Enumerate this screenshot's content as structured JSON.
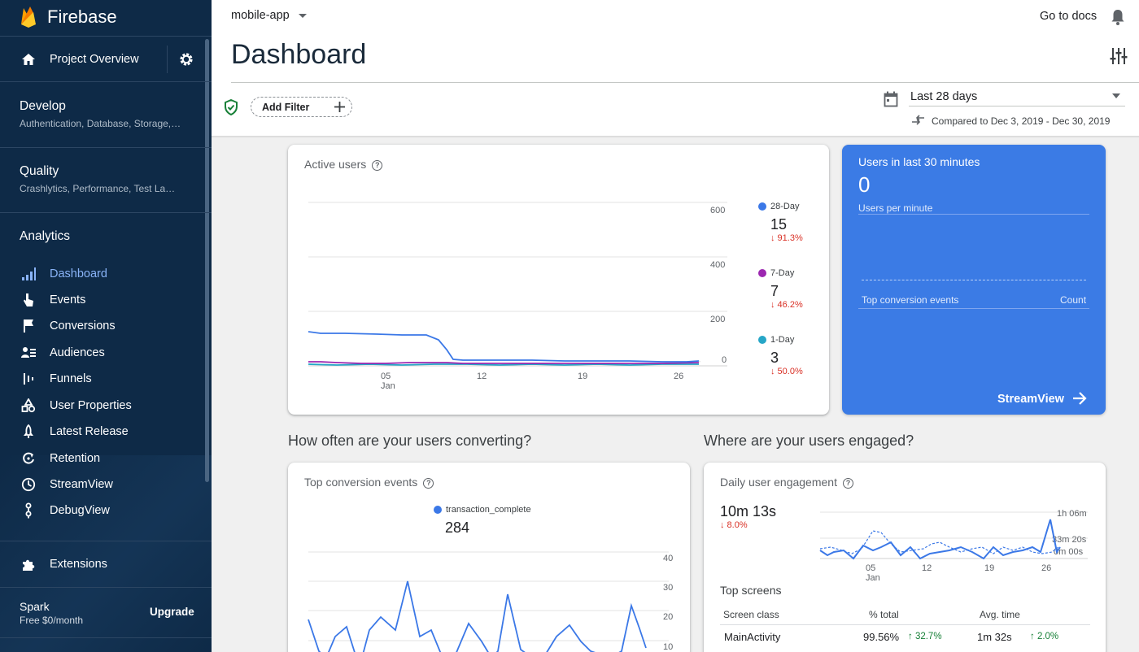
{
  "app": {
    "name": "Firebase"
  },
  "sidebar": {
    "project_overview": "Project Overview",
    "sections": [
      {
        "title": "Develop",
        "subtitle": "Authentication, Database, Storage,…"
      },
      {
        "title": "Quality",
        "subtitle": "Crashlytics, Performance, Test La…"
      }
    ],
    "analytics_title": "Analytics",
    "analytics_items": [
      {
        "label": "Dashboard",
        "icon": "dashboard-icon",
        "active": true
      },
      {
        "label": "Events",
        "icon": "events-icon"
      },
      {
        "label": "Conversions",
        "icon": "flag-icon"
      },
      {
        "label": "Audiences",
        "icon": "audiences-icon"
      },
      {
        "label": "Funnels",
        "icon": "funnels-icon"
      },
      {
        "label": "User Properties",
        "icon": "user-properties-icon"
      },
      {
        "label": "Latest Release",
        "icon": "rocket-icon"
      },
      {
        "label": "Retention",
        "icon": "retention-icon"
      },
      {
        "label": "StreamView",
        "icon": "clock-icon"
      },
      {
        "label": "DebugView",
        "icon": "debug-icon"
      }
    ],
    "extensions": "Extensions",
    "plan": {
      "name": "Spark",
      "price": "Free $0/month",
      "upgrade": "Upgrade"
    }
  },
  "header": {
    "project": "mobile-app",
    "docs_link": "Go to docs",
    "page_title": "Dashboard",
    "add_filter": "Add Filter",
    "date_range": "Last 28 days",
    "compared": "Compared to Dec 3, 2019 - Dec 30, 2019"
  },
  "colors": {
    "accent": "#3b7be5",
    "sidebar_bg": "#0e2a47",
    "series_28day": "#3b78e7",
    "series_7day": "#9c27b0",
    "series_1day": "#26a6c7",
    "down": "#d93025",
    "up": "#188038"
  },
  "active_users": {
    "title": "Active users",
    "legend": [
      {
        "name": "28-Day",
        "value": "15",
        "delta": "↓ 91.3%"
      },
      {
        "name": "7-Day",
        "value": "7",
        "delta": "↓ 46.2%"
      },
      {
        "name": "1-Day",
        "value": "3",
        "delta": "↓ 50.0%"
      }
    ],
    "y_ticks": [
      "600",
      "400",
      "200",
      "0"
    ],
    "x_ticks": [
      "05",
      "12",
      "19",
      "26"
    ],
    "x_sub": "Jan"
  },
  "realtime": {
    "title": "Users in last 30 minutes",
    "value": "0",
    "subtitle": "Users per minute",
    "col_events": "Top conversion events",
    "col_count": "Count",
    "link": "StreamView"
  },
  "conversions": {
    "section_title": "How often are your users converting?",
    "card_title": "Top conversion events",
    "legend_name": "transaction_complete",
    "legend_value": "284",
    "y_ticks": [
      "40",
      "30",
      "20",
      "10"
    ]
  },
  "engagement": {
    "section_title": "Where are your users engaged?",
    "card_title": "Daily user engagement",
    "value": "10m 13s",
    "delta": "↓ 8.0%",
    "y_ticks": [
      "1h 06m",
      "33m 20s",
      "0m 00s"
    ],
    "x_ticks": [
      "05",
      "12",
      "19",
      "26"
    ],
    "x_sub": "Jan",
    "top_screens_title": "Top screens",
    "table_headers": [
      "Screen class",
      "% total",
      "Avg. time"
    ],
    "rows": [
      {
        "screen": "MainActivity",
        "total": "99.56%",
        "total_delta": "↑ 32.7%",
        "avg": "1m 32s",
        "avg_delta": "↑ 2.0%"
      }
    ]
  }
}
